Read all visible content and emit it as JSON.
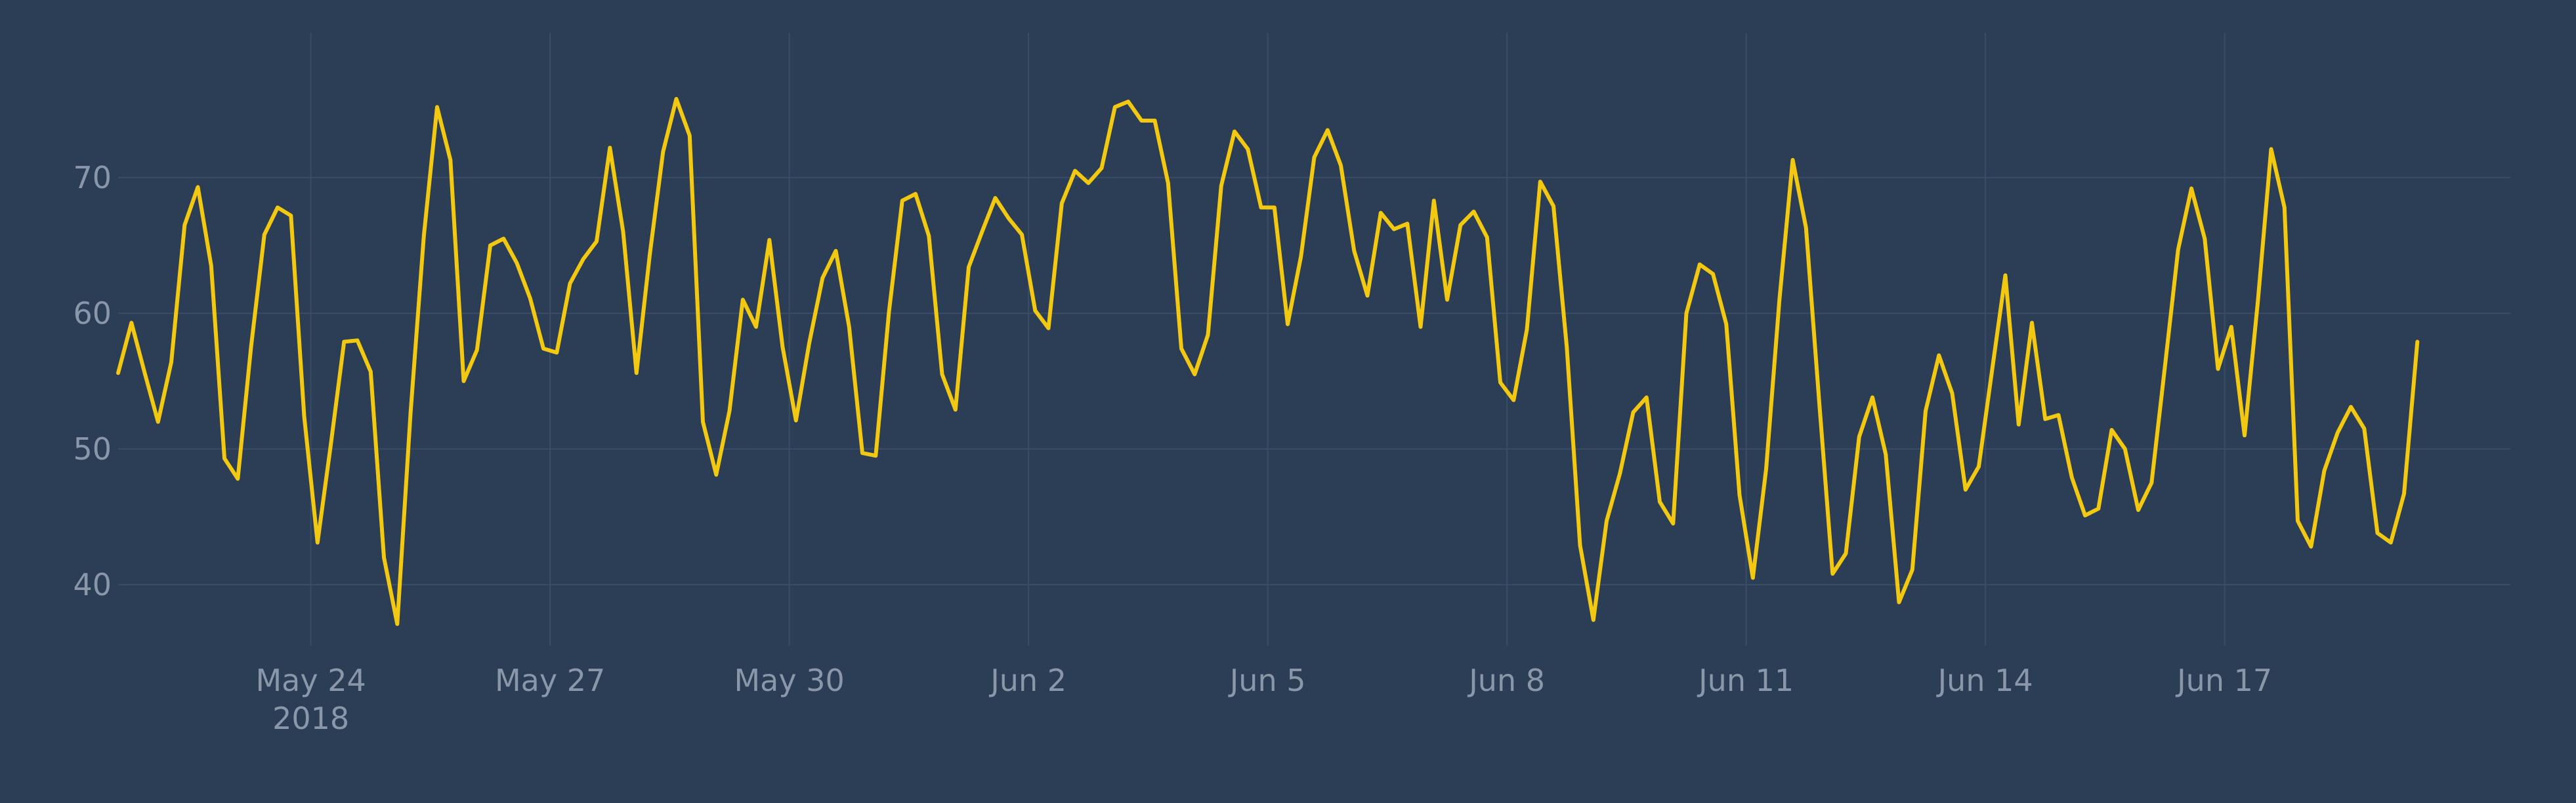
{
  "colors": {
    "background": "#2c3e55",
    "grid": "#3a4d66",
    "tick_text": "#8a97a8",
    "series": "#f2c811"
  },
  "chart_data": {
    "type": "line",
    "title": "",
    "xlabel": "",
    "ylabel": "",
    "grid": true,
    "legend": "none",
    "xlim": [
      "2018-05-21T14:00",
      "2018-06-20T14:00"
    ],
    "ylim": [
      35.5,
      78.5
    ],
    "y_ticks": [
      40,
      50,
      60,
      70
    ],
    "x_ticks": [
      {
        "date": "2018-05-24",
        "label": "May 24",
        "sublabel": "2018"
      },
      {
        "date": "2018-05-27",
        "label": "May 27"
      },
      {
        "date": "2018-05-30",
        "label": "May 30"
      },
      {
        "date": "2018-06-02",
        "label": "Jun 2"
      },
      {
        "date": "2018-06-05",
        "label": "Jun 5"
      },
      {
        "date": "2018-06-08",
        "label": "Jun 8"
      },
      {
        "date": "2018-06-11",
        "label": "Jun 11"
      },
      {
        "date": "2018-06-14",
        "label": "Jun 14"
      },
      {
        "date": "2018-06-17",
        "label": "Jun 17"
      }
    ],
    "series": [
      {
        "x_start": "2018-05-21T14:00",
        "x_step_hours": 4,
        "values": [
          55.6,
          59.3,
          55.6,
          52.0,
          56.4,
          66.5,
          69.3,
          63.5,
          49.3,
          47.8,
          57.5,
          65.8,
          67.8,
          67.2,
          52.4,
          43.1,
          50.3,
          57.9,
          58.0,
          55.7,
          42.0,
          37.1,
          52.6,
          65.7,
          75.2,
          71.3,
          55.0,
          57.3,
          65.0,
          65.5,
          63.7,
          61.1,
          57.4,
          57.1,
          62.2,
          64.0,
          65.3,
          72.2,
          66.0,
          55.6,
          64.3,
          71.9,
          75.8,
          73.1,
          52.0,
          48.1,
          52.8,
          61.0,
          59.0,
          65.4,
          57.5,
          52.1,
          57.8,
          62.6,
          64.6,
          59.0,
          49.7,
          49.5,
          60.1,
          68.3,
          68.8,
          65.7,
          55.5,
          52.9,
          63.4,
          66.0,
          68.5,
          67.0,
          65.8,
          60.2,
          58.9,
          68.1,
          70.5,
          69.6,
          70.7,
          75.2,
          75.6,
          74.2,
          74.2,
          69.6,
          57.4,
          55.5,
          58.4,
          69.4,
          73.4,
          72.1,
          67.8,
          67.8,
          59.2,
          64.2,
          71.5,
          73.5,
          70.9,
          64.6,
          61.3,
          67.4,
          66.2,
          66.6,
          59.0,
          68.3,
          61.0,
          66.5,
          67.5,
          65.6,
          54.9,
          53.6,
          58.8,
          69.7,
          67.9,
          57.5,
          42.9,
          37.4,
          44.7,
          48.2,
          52.7,
          53.8,
          46.1,
          44.5,
          60.0,
          63.6,
          62.9,
          59.2,
          46.6,
          40.5,
          48.5,
          61.0,
          71.3,
          66.3,
          53.4,
          40.8,
          42.3,
          50.9,
          53.8,
          49.6,
          38.7,
          41.1,
          52.8,
          56.9,
          54.1,
          47.0,
          48.7,
          55.8,
          62.8,
          51.8,
          59.3,
          52.2,
          52.5,
          47.9,
          45.1,
          45.6,
          51.4,
          50.0,
          45.5,
          47.5,
          56.0,
          64.7,
          69.2,
          65.5,
          55.9,
          59.0,
          51.0,
          60.9,
          72.1,
          67.8,
          44.7,
          42.8,
          48.4,
          51.2,
          53.1,
          51.5,
          43.8,
          43.1,
          46.7,
          57.9
        ]
      }
    ]
  }
}
